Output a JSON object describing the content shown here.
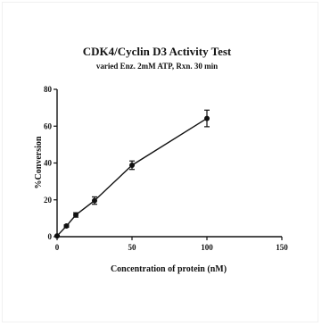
{
  "chart_data": {
    "type": "scatter",
    "title": "CDK4/Cyclin D3 Activity Test",
    "subtitle": "varied Enz. 2mM ATP, Rxn. 30 min",
    "xlabel": "Concentration of protein (nM)",
    "ylabel": "%Conversion",
    "xlim": [
      0,
      150
    ],
    "ylim": [
      0,
      80
    ],
    "x_ticks": [
      0,
      50,
      100,
      150
    ],
    "y_ticks": [
      0,
      20,
      40,
      60,
      80
    ],
    "grid": false,
    "legend": "none",
    "color": "#111111",
    "x": [
      0,
      6.25,
      12.5,
      25,
      50,
      100
    ],
    "y": [
      0.4,
      5.8,
      11.8,
      19.6,
      38.8,
      64.2
    ],
    "error": [
      0.3,
      0.6,
      1.2,
      2.0,
      2.3,
      4.5
    ]
  }
}
